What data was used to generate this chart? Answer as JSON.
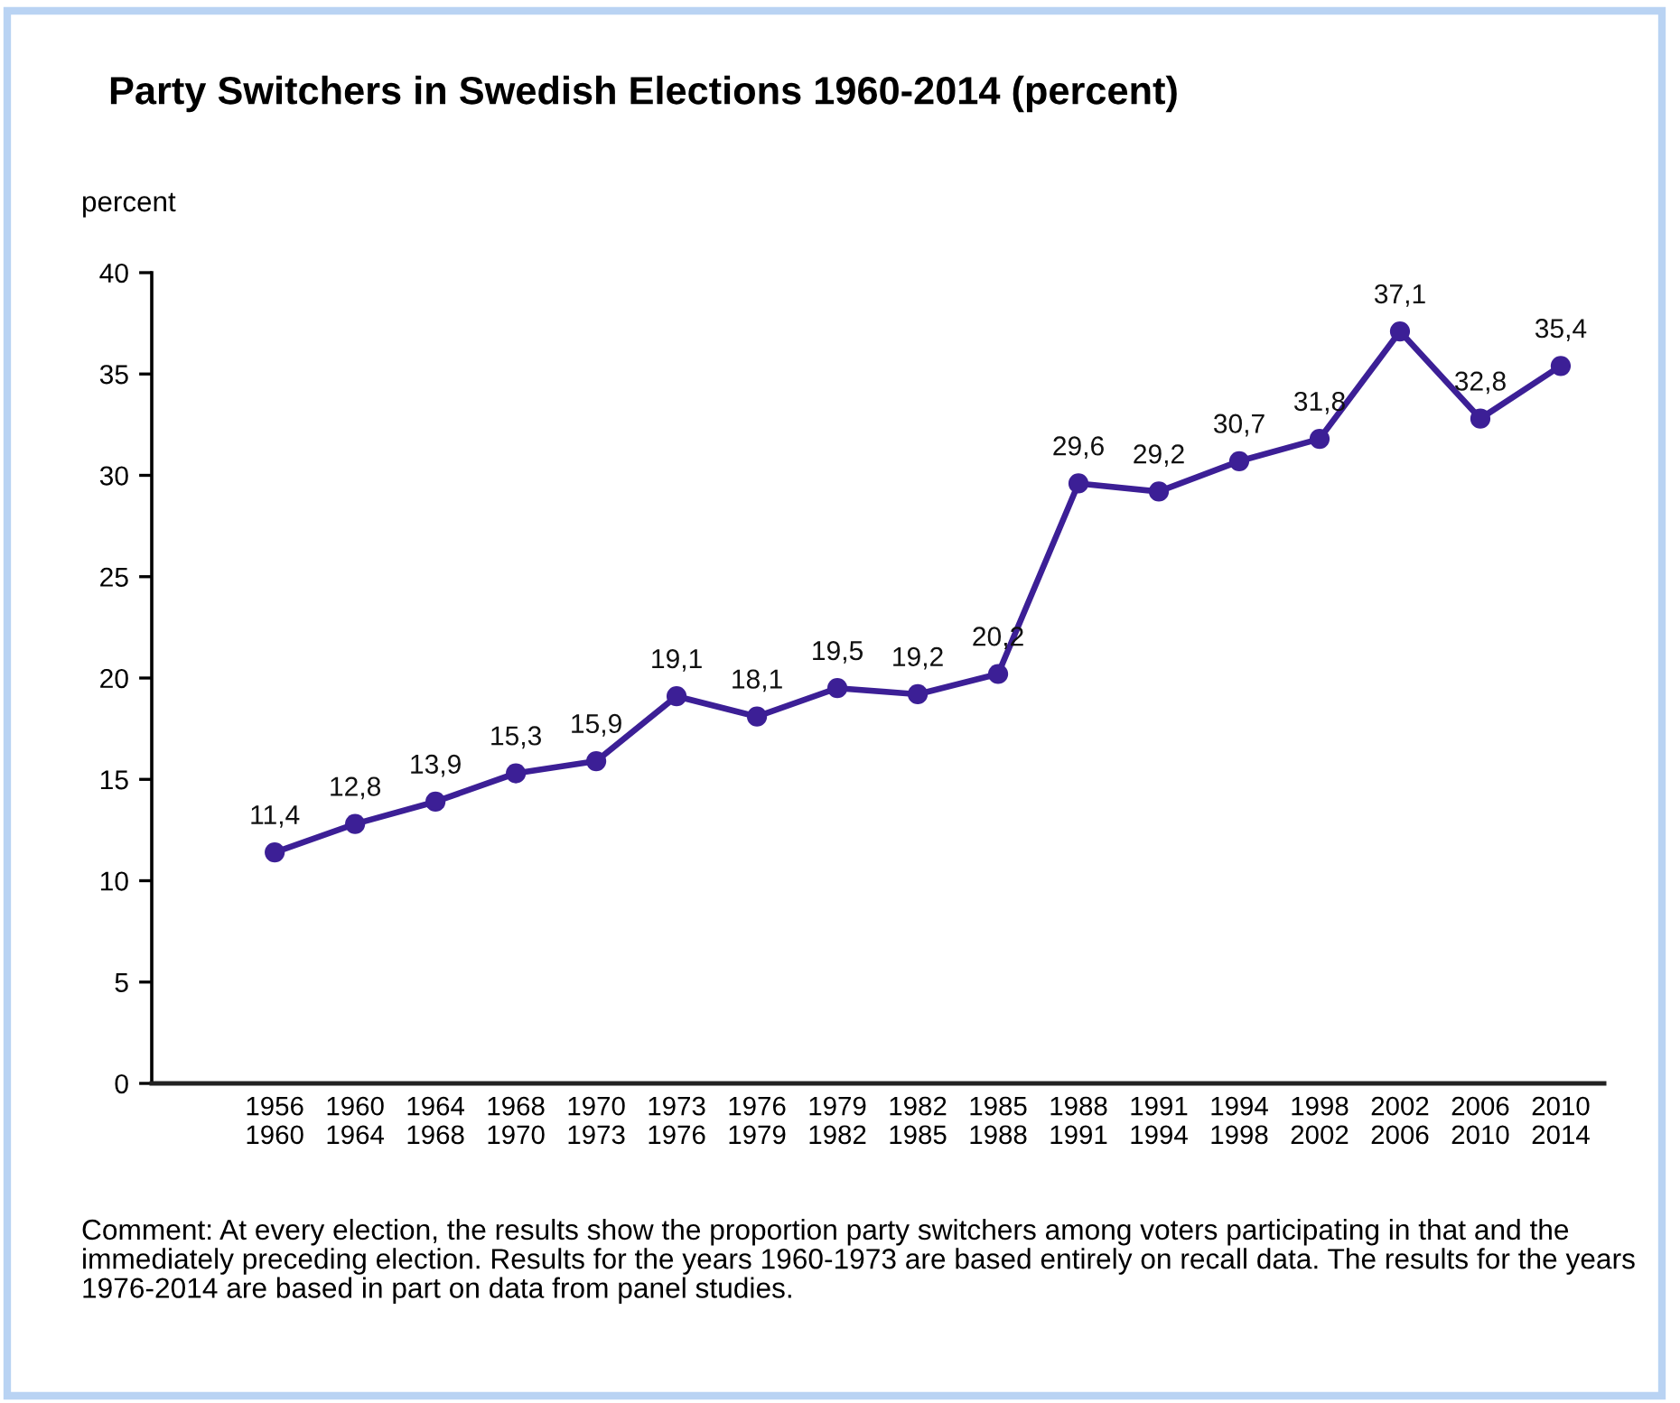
{
  "chart_data": {
    "type": "line",
    "title": "Party Switchers in Swedish Elections 1960-2014 (percent)",
    "ylabel": "percent",
    "categories": [
      "1956\n1960",
      "1960\n1964",
      "1964\n1968",
      "1968\n1970",
      "1970\n1973",
      "1973\n1976",
      "1976\n1979",
      "1979\n1982",
      "1982\n1985",
      "1985\n1988",
      "1988\n1991",
      "1991\n1994",
      "1994\n1998",
      "1998\n2002",
      "2002\n2006",
      "2006\n2010",
      "2010\n2014"
    ],
    "series": [
      {
        "color": "#3c1f96",
        "values": [
          11.4,
          12.8,
          13.9,
          15.3,
          15.9,
          19.1,
          18.1,
          19.5,
          19.2,
          20.2,
          29.6,
          29.2,
          30.7,
          31.8,
          37.1,
          32.8,
          35.4
        ],
        "value_labels": [
          "11,4",
          "12,8",
          "13,9",
          "15,3",
          "15,9",
          "19,1",
          "18,1",
          "19,5",
          "19,2",
          "20,2",
          "29,6",
          "29,2",
          "30,7",
          "31,8",
          "37,1",
          "32,8",
          "35,4"
        ]
      }
    ],
    "ylim": [
      0,
      40
    ],
    "yticks": [
      0,
      5,
      10,
      15,
      20,
      25,
      30,
      35,
      40
    ],
    "marker": "circle",
    "line_style": "solid",
    "annotations": [
      "Comment: At every election, the results show the proportion party switchers among voters participating in that and the immediately preceding election. Results for the years 1960-1973 are based entirely on recall data. The results for the years 1976-2014 are based in part on data from panel studies."
    ]
  }
}
